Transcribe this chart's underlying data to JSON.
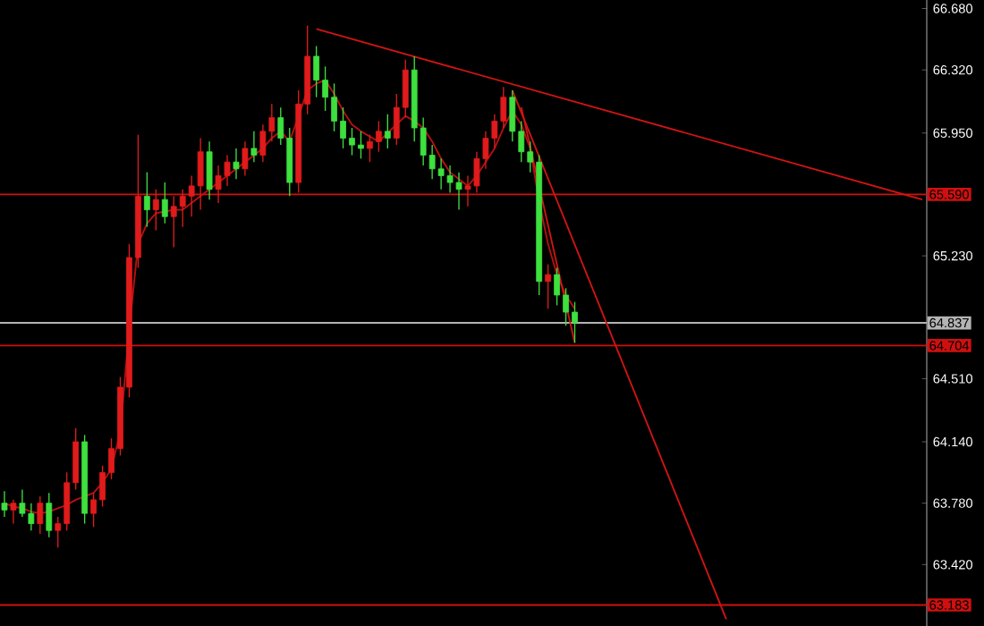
{
  "chart_data": {
    "type": "candlestick",
    "categories": [
      null,
      null,
      null,
      null,
      null,
      null,
      null,
      null,
      null,
      null,
      null,
      null,
      null,
      null,
      null,
      null,
      null,
      null,
      null,
      null,
      null,
      null,
      null,
      null,
      null,
      null,
      null,
      null,
      null,
      null,
      null,
      null,
      null,
      null,
      null,
      null,
      null,
      null,
      null,
      null,
      null,
      null,
      null,
      null,
      null,
      null,
      null,
      null,
      null,
      null,
      null,
      null,
      null,
      null,
      null,
      null,
      null,
      null,
      null,
      null,
      null,
      null,
      null,
      null,
      null,
      null,
      null,
      null,
      null,
      null,
      null,
      null,
      null,
      null,
      null,
      null,
      null,
      null,
      null,
      null,
      null,
      null,
      null,
      null,
      null,
      null,
      null,
      null,
      null,
      null,
      null,
      null,
      null,
      null,
      null,
      null,
      null,
      null,
      null,
      null,
      null,
      null,
      null,
      null
    ],
    "ohlc": [
      [
        63.78,
        63.85,
        63.7,
        63.74
      ],
      [
        63.74,
        63.8,
        63.66,
        63.78
      ],
      [
        63.78,
        63.86,
        63.7,
        63.72
      ],
      [
        63.72,
        63.78,
        63.62,
        63.66
      ],
      [
        63.66,
        63.82,
        63.6,
        63.78
      ],
      [
        63.78,
        63.84,
        63.58,
        63.62
      ],
      [
        63.62,
        63.7,
        63.52,
        63.66
      ],
      [
        63.66,
        63.96,
        63.62,
        63.9
      ],
      [
        63.9,
        64.22,
        63.86,
        64.14
      ],
      [
        64.14,
        64.18,
        63.66,
        63.72
      ],
      [
        63.72,
        63.84,
        63.64,
        63.8
      ],
      [
        63.8,
        64.0,
        63.76,
        63.96
      ],
      [
        63.96,
        64.16,
        63.92,
        64.1
      ],
      [
        64.1,
        64.52,
        64.06,
        64.46
      ],
      [
        64.46,
        65.3,
        64.4,
        65.22
      ],
      [
        65.22,
        65.94,
        65.16,
        65.58
      ],
      [
        65.58,
        65.72,
        65.4,
        65.5
      ],
      [
        65.5,
        65.62,
        65.38,
        65.56
      ],
      [
        65.56,
        65.66,
        65.42,
        65.46
      ],
      [
        65.46,
        65.58,
        65.28,
        65.52
      ],
      [
        65.52,
        65.62,
        65.4,
        65.58
      ],
      [
        65.58,
        65.7,
        65.46,
        65.64
      ],
      [
        65.64,
        65.92,
        65.5,
        65.84
      ],
      [
        65.84,
        65.9,
        65.56,
        65.62
      ],
      [
        65.62,
        65.76,
        65.54,
        65.7
      ],
      [
        65.7,
        65.82,
        65.64,
        65.78
      ],
      [
        65.78,
        65.86,
        65.68,
        65.74
      ],
      [
        65.74,
        65.9,
        65.7,
        65.86
      ],
      [
        65.86,
        65.96,
        65.78,
        65.82
      ],
      [
        65.82,
        66.0,
        65.78,
        65.96
      ],
      [
        65.96,
        66.12,
        65.9,
        66.04
      ],
      [
        66.04,
        66.1,
        65.88,
        65.92
      ],
      [
        65.92,
        65.98,
        65.58,
        65.66
      ],
      [
        65.66,
        66.2,
        65.6,
        66.12
      ],
      [
        66.12,
        66.58,
        66.06,
        66.4
      ],
      [
        66.4,
        66.46,
        66.16,
        66.26
      ],
      [
        66.26,
        66.34,
        66.08,
        66.16
      ],
      [
        66.16,
        66.24,
        65.96,
        66.02
      ],
      [
        66.02,
        66.1,
        65.86,
        65.92
      ],
      [
        65.92,
        65.98,
        65.82,
        65.88
      ],
      [
        65.88,
        65.96,
        65.8,
        65.86
      ],
      [
        65.86,
        65.94,
        65.78,
        65.9
      ],
      [
        65.9,
        66.02,
        65.84,
        65.96
      ],
      [
        65.96,
        66.06,
        65.86,
        65.92
      ],
      [
        65.92,
        66.18,
        65.88,
        66.1
      ],
      [
        66.1,
        66.38,
        66.04,
        66.32
      ],
      [
        66.32,
        66.4,
        65.9,
        65.98
      ],
      [
        65.98,
        66.04,
        65.76,
        65.82
      ],
      [
        65.82,
        65.88,
        65.68,
        65.74
      ],
      [
        65.74,
        65.8,
        65.62,
        65.7
      ],
      [
        65.7,
        65.76,
        65.6,
        65.66
      ],
      [
        65.66,
        65.72,
        65.5,
        65.62
      ],
      [
        65.62,
        65.7,
        65.52,
        65.64
      ],
      [
        65.64,
        65.84,
        65.6,
        65.8
      ],
      [
        65.8,
        65.96,
        65.74,
        65.92
      ],
      [
        65.92,
        66.06,
        65.86,
        66.02
      ],
      [
        66.02,
        66.22,
        65.98,
        66.16
      ],
      [
        66.16,
        66.2,
        65.9,
        65.96
      ],
      [
        65.96,
        66.02,
        65.78,
        65.84
      ],
      [
        65.84,
        65.9,
        65.72,
        65.78
      ],
      [
        65.78,
        65.82,
        65.0,
        65.08
      ],
      [
        65.08,
        65.18,
        64.92,
        65.12
      ],
      [
        65.12,
        65.16,
        64.94,
        65.0
      ],
      [
        65.0,
        65.04,
        64.82,
        64.9
      ],
      [
        64.9,
        64.96,
        64.72,
        64.84
      ],
      null,
      null,
      null,
      null,
      null,
      null,
      null,
      null,
      null,
      null,
      null,
      null,
      null,
      null,
      null,
      null,
      null,
      null,
      null,
      null,
      null,
      null,
      null,
      null,
      null,
      null,
      null,
      null,
      null,
      null,
      null,
      null,
      null,
      null,
      null,
      null,
      null,
      null,
      null
    ],
    "colors": [
      "#3ee03e",
      "#e01b1b",
      "#3ee03e",
      "#3ee03e",
      "#e01b1b",
      "#3ee03e",
      "#e01b1b",
      "#e01b1b",
      "#e01b1b",
      "#3ee03e",
      "#e01b1b",
      "#e01b1b",
      "#e01b1b",
      "#e01b1b",
      "#e01b1b",
      "#e01b1b",
      "#3ee03e",
      "#e01b1b",
      "#3ee03e",
      "#e01b1b",
      "#e01b1b",
      "#e01b1b",
      "#e01b1b",
      "#3ee03e",
      "#e01b1b",
      "#e01b1b",
      "#3ee03e",
      "#e01b1b",
      "#3ee03e",
      "#e01b1b",
      "#e01b1b",
      "#3ee03e",
      "#3ee03e",
      "#e01b1b",
      "#e01b1b",
      "#3ee03e",
      "#3ee03e",
      "#3ee03e",
      "#3ee03e",
      "#3ee03e",
      "#3ee03e",
      "#e01b1b",
      "#e01b1b",
      "#3ee03e",
      "#e01b1b",
      "#e01b1b",
      "#3ee03e",
      "#3ee03e",
      "#3ee03e",
      "#3ee03e",
      "#3ee03e",
      "#3ee03e",
      "#e01b1b",
      "#e01b1b",
      "#e01b1b",
      "#e01b1b",
      "#e01b1b",
      "#3ee03e",
      "#3ee03e",
      "#3ee03e",
      "#3ee03e",
      "#e01b1b",
      "#3ee03e",
      "#3ee03e",
      "#3ee03e",
      null,
      null,
      null,
      null,
      null,
      null,
      null,
      null,
      null,
      null,
      null,
      null,
      null,
      null,
      null,
      null,
      null,
      null,
      null,
      null,
      null,
      null,
      null,
      null,
      null,
      null,
      null,
      null,
      null,
      null,
      null,
      null,
      null,
      null,
      null,
      null,
      null,
      null,
      null
    ],
    "series": [
      {
        "type": "line",
        "color": "#b81010",
        "values": [
          63.78,
          63.76,
          63.75,
          63.73,
          63.72,
          63.73,
          63.75,
          63.77,
          63.8,
          63.82,
          63.84,
          63.9,
          63.98,
          64.2,
          64.8,
          65.3,
          65.42,
          65.48,
          65.49,
          65.5,
          65.5,
          65.54,
          65.58,
          65.62,
          65.66,
          65.7,
          65.74,
          65.78,
          65.82,
          65.86,
          65.92,
          65.96,
          65.9,
          66.05,
          66.2,
          66.24,
          66.26,
          66.18,
          66.08,
          66.0,
          65.96,
          65.93,
          65.9,
          65.95,
          66.0,
          66.05,
          66.02,
          65.98,
          65.9,
          65.8,
          65.72,
          65.68,
          65.64,
          65.7,
          65.78,
          65.86,
          65.98,
          66.08,
          66.0,
          65.86,
          65.55,
          65.3,
          65.12,
          65.0,
          64.92,
          null,
          null,
          null,
          null,
          null,
          null,
          null,
          null,
          null,
          null,
          null,
          null,
          null,
          null,
          null,
          null,
          null,
          null,
          null,
          null,
          null,
          null,
          null,
          null,
          null,
          null,
          null,
          null,
          null,
          null,
          null,
          null,
          null,
          null,
          null,
          null,
          null,
          null,
          null
        ]
      },
      {
        "type": "line",
        "color": "#d01414",
        "values": [
          null,
          null,
          null,
          null,
          null,
          null,
          null,
          null,
          null,
          null,
          null,
          null,
          null,
          null,
          null,
          null,
          null,
          null,
          null,
          null,
          null,
          null,
          null,
          null,
          null,
          null,
          null,
          null,
          null,
          null,
          null,
          null,
          null,
          null,
          null,
          66.56,
          null,
          null,
          null,
          null,
          null,
          null,
          null,
          null,
          null,
          null,
          null,
          null,
          null,
          null,
          null,
          null,
          null,
          null,
          null,
          null,
          null,
          null,
          null,
          null,
          null,
          null,
          null,
          null,
          null,
          null,
          null,
          null,
          null,
          null,
          null,
          null,
          null,
          null,
          null,
          null,
          null,
          null,
          null,
          null,
          null,
          null,
          null,
          null,
          null,
          null,
          null,
          null,
          null,
          null,
          null,
          null,
          null,
          null,
          null,
          null,
          null,
          null,
          null,
          null,
          null,
          null,
          null,
          65.56
        ]
      },
      {
        "type": "line",
        "color": "#d01414",
        "values": [
          null,
          null,
          null,
          null,
          null,
          null,
          null,
          null,
          null,
          null,
          null,
          null,
          null,
          null,
          null,
          null,
          null,
          null,
          null,
          null,
          null,
          null,
          null,
          null,
          null,
          null,
          null,
          null,
          null,
          null,
          null,
          null,
          null,
          null,
          null,
          null,
          null,
          null,
          null,
          null,
          null,
          null,
          null,
          null,
          null,
          null,
          null,
          null,
          null,
          null,
          null,
          null,
          null,
          null,
          null,
          null,
          null,
          66.2,
          null,
          null,
          null,
          null,
          null,
          null,
          null,
          null,
          null,
          null,
          null,
          null,
          null,
          null,
          null,
          null,
          null,
          null,
          null,
          null,
          null,
          null,
          null,
          63.1,
          null,
          null,
          null,
          null,
          null,
          null,
          null,
          null,
          null,
          null,
          null,
          null,
          null,
          null,
          null,
          null,
          null,
          null,
          null,
          null,
          null,
          null
        ]
      },
      {
        "type": "line",
        "color": "#d01414",
        "values": [
          null,
          null,
          null,
          null,
          null,
          null,
          null,
          null,
          null,
          null,
          null,
          null,
          null,
          null,
          null,
          null,
          null,
          null,
          null,
          null,
          null,
          null,
          null,
          null,
          null,
          null,
          null,
          null,
          null,
          null,
          null,
          null,
          null,
          null,
          null,
          null,
          null,
          null,
          null,
          null,
          null,
          null,
          null,
          null,
          null,
          null,
          null,
          null,
          null,
          null,
          null,
          null,
          null,
          null,
          null,
          null,
          null,
          null,
          66.1,
          null,
          null,
          null,
          null,
          null,
          64.72,
          null,
          null,
          null,
          null,
          null,
          null,
          null,
          null,
          null,
          null,
          null,
          null,
          null,
          null,
          null,
          null,
          null,
          null,
          null,
          null,
          null,
          null,
          null,
          null,
          null,
          null,
          null,
          null,
          null,
          null,
          null,
          null,
          null,
          null,
          null,
          null,
          null,
          null,
          null
        ]
      }
    ],
    "ylim": [
      63.06,
      66.73
    ],
    "yticks": [
      {
        "value": 66.68,
        "label": "66.680"
      },
      {
        "value": 66.32,
        "label": "66.320"
      },
      {
        "value": 65.95,
        "label": "65.950"
      },
      {
        "value": 65.23,
        "label": "65.230"
      },
      {
        "value": 64.51,
        "label": "64.510"
      },
      {
        "value": 64.14,
        "label": "64.140"
      },
      {
        "value": 63.78,
        "label": "63.780"
      },
      {
        "value": 63.42,
        "label": "63.420"
      }
    ],
    "ref_lines": [
      {
        "axis": "y",
        "value": 65.59,
        "label": "65.590",
        "color": "#d01010"
      },
      {
        "axis": "y",
        "value": 64.837,
        "label": "64.837",
        "color": "#b4b4b4"
      },
      {
        "axis": "y",
        "value": 64.704,
        "label": "64.704",
        "color": "#d01010"
      },
      {
        "axis": "y",
        "value": 63.183,
        "label": "63.183",
        "color": "#d01010"
      }
    ],
    "tick_labels": "y"
  }
}
